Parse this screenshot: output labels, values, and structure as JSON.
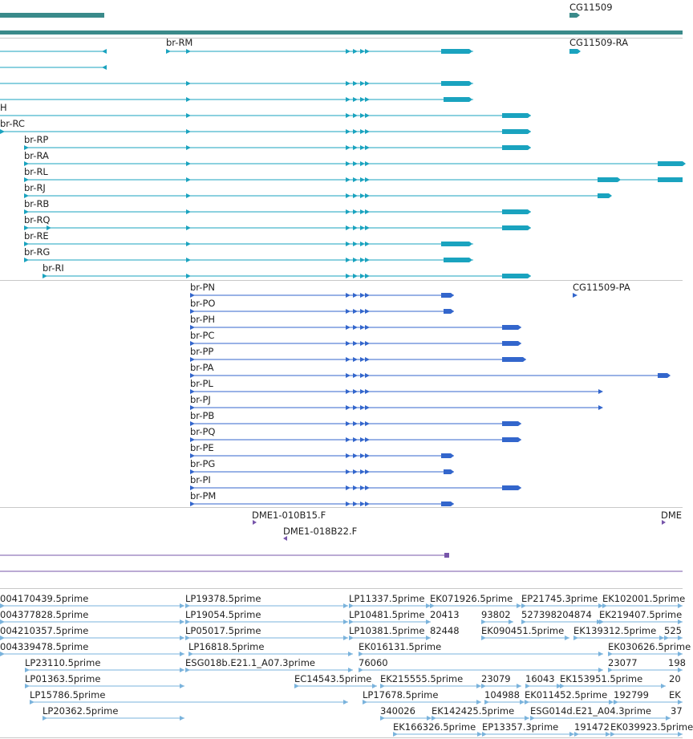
{
  "colors": {
    "gene": "#3a8a8a",
    "transcript": "#1aa3bf",
    "protein": "#3366cc",
    "clone": "#7755aa",
    "est": "#7ab3dc",
    "label": "#222222",
    "divider": "#c8c8c8"
  },
  "gene_track": {
    "labels": [
      "CG11509"
    ]
  },
  "transcript_track": {
    "labels": [
      "br-RM",
      "CG11509-RA",
      "H",
      "br-RC",
      "br-RP",
      "br-RA",
      "br-RL",
      "br-RJ",
      "br-RB",
      "br-RQ",
      "br-RE",
      "br-RG",
      "br-RI"
    ]
  },
  "protein_track": {
    "labels": [
      "br-PN",
      "CG11509-PA",
      "br-PO",
      "br-PH",
      "br-PC",
      "br-PP",
      "br-PA",
      "br-PL",
      "br-PJ",
      "br-PB",
      "br-PQ",
      "br-PE",
      "br-PG",
      "br-PI",
      "br-PM"
    ]
  },
  "clone_track": {
    "labels": [
      "DME1-010B15.F",
      "DME",
      "DME1-018B22.F"
    ]
  },
  "est_track": {
    "labels": [
      "004170439.5prime",
      "LP19378.5prime",
      "LP11337.5prime",
      "EK071926.5prime",
      "EP21745.3prime",
      "EK102001.5prime",
      "004377828.5prime",
      "LP19054.5prime",
      "LP10481.5prime",
      "20413",
      "93802",
      "527398204874",
      "EK219407.5prime",
      "004210357.5prime",
      "LP05017.5prime",
      "LP10381.5prime",
      "82448",
      "EK090451.5prime",
      "EK139312.5prime",
      "525",
      "004339478.5prime",
      "LP16818.5prime",
      "EK016131.5prime",
      "EK030626.5prime",
      "LP23110.5prime",
      "ESG018b.E21.1_A07.3prime",
      "76060",
      "23077",
      "198",
      "LP01363.5prime",
      "EC14543.5prime",
      "EK215555.5prime",
      "23079",
      "16043",
      "EK153951.5prime",
      "20",
      "LP15786.5prime",
      "LP17678.5prime",
      "104988",
      "EK011452.5prime",
      "192799",
      "EK",
      "LP20362.5prime",
      "340026",
      "EK142425.5prime",
      "ESG014d.E21_A04.3prime",
      "37",
      "EK166326.5prime",
      "EP13357.3prime",
      "191472",
      "EK039923.5prime"
    ]
  }
}
